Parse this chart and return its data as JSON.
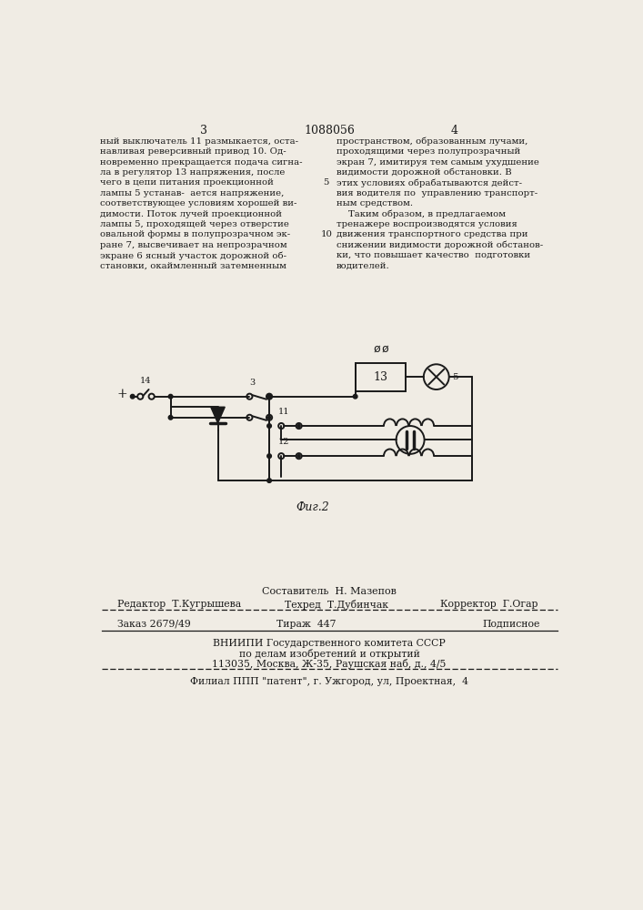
{
  "bg_color": "#f0ece4",
  "title_center": "1088056",
  "page_left": "3",
  "page_right": "4",
  "col_left": [
    "ный выключатель 11 размыкается, оста-",
    "навливая реверсивный привод 10. Од-",
    "новременно прекращается подача сигна-",
    "ла в регулятор 13 напряжения, после",
    "чего в цепи питания проекционной",
    "лампы 5 устанав-  ается напряжение,",
    "соответствующее условиям хорошей ви-",
    "димости. Поток лучей проекционной",
    "лампы 5, проходящей через отверстие",
    "овальной формы в полупрозрачном эк-",
    "ране 7, высвечивает на непрозрачном",
    "экране 6 ясный участок дорожной об-",
    "становки, окаймленный затемненным"
  ],
  "col_right": [
    "пространством, образованным лучами,",
    "проходящими через полупрозрачный",
    "экран 7, имитируя тем самым ухудшение",
    "видимости дорожной обстановки. В",
    "этих условиях обрабатываются дейст-",
    "вия водителя по  управлению транспорт-",
    "ным средством.",
    "    Таким образом, в предлагаемом",
    "тренажере воспроизводятся условия",
    "движения транспортного средства при",
    "снижении видимости дорожной обстанов-",
    "ки, что повышает качество  подготовки",
    "водителей."
  ],
  "fig_label": "Фиг.2",
  "footer_composer": "Составитель  Н. Мазепов",
  "footer_editor": "Редактор  Т.Кугрышева",
  "footer_tech": "Техред  Т.Дубинчак",
  "footer_corrector": "Корректор  Г.Огар",
  "footer_order": "Заказ 2679/49",
  "footer_circulation": "Тираж  447",
  "footer_subscription": "Подписное",
  "footer_vniigi": "ВНИИПИ Государственного комитета СССР",
  "footer_vniigi2": "по делам изобретений и открытий",
  "footer_address": "113035, Москва, Ж-35, Раушская наб, д., 4/5",
  "footer_filial": "Филиал ППП \"патент\", г. Ужгород, ул, Проектная,  4"
}
